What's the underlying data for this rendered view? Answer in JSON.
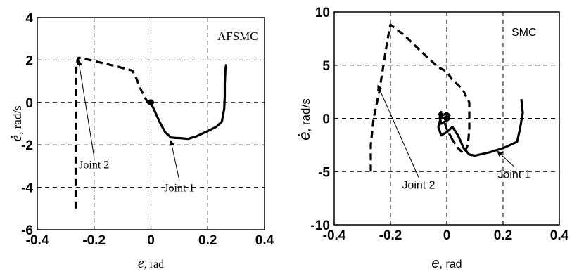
{
  "chart_data": [
    {
      "type": "line",
      "title": "",
      "annotation": "AFSMC",
      "xlabel": "e , rad",
      "xlabel_italic": "e",
      "xlabel_unit": ", rad",
      "ylabel": "ė , rad/s",
      "ylabel_symbol": "ė",
      "ylabel_unit": ", rad/s",
      "xlim": [
        -0.4,
        0.4
      ],
      "ylim": [
        -6,
        4
      ],
      "xticks": [
        -0.4,
        -0.2,
        0,
        0.2,
        0.4
      ],
      "xtick_labels": [
        "-0.4",
        "-0.2",
        "0",
        "0.2",
        "0.4"
      ],
      "yticks": [
        -6,
        -4,
        -2,
        0,
        2,
        4
      ],
      "ytick_labels": [
        "-6",
        "-4",
        "-2",
        "0",
        "2",
        "4"
      ],
      "grid": true,
      "series": [
        {
          "name": "Joint 2",
          "style": "dashed",
          "color": "#000000",
          "x": [
            -0.265,
            -0.265,
            -0.264,
            -0.262,
            -0.255,
            -0.245,
            -0.2,
            -0.12,
            -0.065,
            -0.05,
            -0.035,
            -0.02,
            -0.008,
            0.0
          ],
          "y": [
            -5.0,
            -2.0,
            0.5,
            1.8,
            2.1,
            2.1,
            1.95,
            1.7,
            1.5,
            1.1,
            0.6,
            0.2,
            -0.05,
            -0.05
          ]
        },
        {
          "name": "Joint 1",
          "style": "solid",
          "color": "#000000",
          "x": [
            0.0,
            0.01,
            0.03,
            0.05,
            0.07,
            0.09,
            0.1,
            0.13,
            0.16,
            0.2,
            0.23,
            0.25,
            0.258,
            0.26,
            0.26,
            0.262,
            0.265
          ],
          "y": [
            -0.05,
            -0.3,
            -0.9,
            -1.4,
            -1.65,
            -1.68,
            -1.68,
            -1.72,
            -1.6,
            -1.35,
            -1.15,
            -0.9,
            -0.3,
            0.3,
            0.9,
            1.5,
            1.8
          ]
        }
      ],
      "annotations": [
        {
          "text": "Joint 2",
          "label_at": [
            -0.2,
            -3.1
          ],
          "arrow_to": [
            -0.255,
            2.0
          ]
        },
        {
          "text": "Joint 1",
          "label_at": [
            0.1,
            -4.2
          ],
          "arrow_to": [
            0.07,
            -1.8
          ]
        }
      ]
    },
    {
      "type": "line",
      "title": "",
      "annotation": "SMC",
      "xlabel": "e, rad",
      "xlabel_italic": "e",
      "xlabel_unit": ", rad",
      "ylabel": "ė, rad/s",
      "ylabel_symbol": "ė",
      "ylabel_unit": ", rad/s",
      "xlim": [
        -0.4,
        0.4
      ],
      "ylim": [
        -10,
        10
      ],
      "xticks": [
        -0.4,
        -0.2,
        0,
        0.2,
        0.4
      ],
      "xtick_labels": [
        "-0.4",
        "-0.2",
        "0",
        "0.2",
        "0.4"
      ],
      "yticks": [
        -10,
        -5,
        0,
        5,
        10
      ],
      "ytick_labels": [
        "-10",
        "-5",
        "0",
        "5",
        "10"
      ],
      "grid": true,
      "series": [
        {
          "name": "Joint 2",
          "style": "dashed",
          "color": "#000000",
          "x": [
            -0.27,
            -0.27,
            -0.26,
            -0.24,
            -0.225,
            -0.21,
            -0.2,
            -0.15,
            -0.1,
            -0.03,
            0.0,
            0.02,
            0.055,
            0.08,
            0.08,
            0.075,
            0.06,
            0.04,
            0.02
          ],
          "y": [
            -5.0,
            -2.5,
            0.0,
            2.5,
            5.0,
            7.5,
            8.8,
            7.8,
            6.5,
            4.8,
            4.4,
            3.6,
            2.8,
            1.5,
            -1.0,
            -2.5,
            -3.3,
            -2.8,
            -2.0
          ],
          "extra": [
            {
              "x": [
                0.02,
                0.0,
                -0.01,
                -0.02,
                -0.015
              ],
              "y": [
                -2.0,
                -1.0,
                -0.2,
                0.3,
                0.5
              ]
            }
          ]
        },
        {
          "name": "Joint 1",
          "style": "solid",
          "color": "#000000",
          "x": [
            -0.03,
            -0.02,
            -0.025,
            -0.02,
            0.0,
            0.01,
            0.0,
            -0.02,
            -0.03,
            -0.02,
            0.0,
            0.02,
            0.04,
            0.06,
            0.08,
            0.1,
            0.15,
            0.2,
            0.25,
            0.26,
            0.27,
            0.265
          ],
          "y": [
            0.3,
            0.6,
            0.1,
            -0.5,
            -0.2,
            0.3,
            0.5,
            0.2,
            -0.8,
            -1.6,
            -1.3,
            -0.8,
            -1.6,
            -2.8,
            -3.4,
            -3.5,
            -3.2,
            -2.8,
            -2.2,
            -1.0,
            0.5,
            1.8
          ]
        }
      ],
      "annotations": [
        {
          "text": "Joint 2",
          "label_at": [
            -0.1,
            -6.6
          ],
          "arrow_to": [
            -0.245,
            3.1
          ]
        },
        {
          "text": "Joint 1",
          "label_at": [
            0.24,
            -5.6
          ],
          "arrow_to": [
            0.18,
            -3.1
          ]
        }
      ]
    }
  ]
}
